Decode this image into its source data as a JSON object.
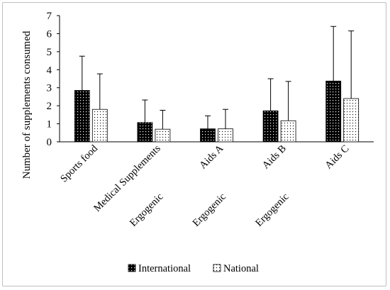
{
  "chart_data": {
    "type": "bar",
    "title": "",
    "ylabel": "Number of supplements consumed",
    "xlabel": "",
    "ylim": [
      0,
      7
    ],
    "yticks": [
      0,
      1,
      2,
      3,
      4,
      5,
      6,
      7
    ],
    "grid": false,
    "legend_position": "bottom",
    "error_bars": true,
    "categories": [
      "Sports food",
      "Medical Supplements",
      "Aids A",
      "Aids B",
      "Aids C"
    ],
    "category_prefix_labels": [
      "Ergogenic",
      "Ergogenic",
      "Ergogenic"
    ],
    "series": [
      {
        "name": "International",
        "fill": "#000000",
        "pattern": "white-dots",
        "values": [
          2.85,
          1.07,
          0.72,
          1.72,
          3.37
        ],
        "errors": [
          1.9,
          1.25,
          0.72,
          1.78,
          3.03
        ]
      },
      {
        "name": "National",
        "fill": "#ffffff",
        "pattern": "black-dots",
        "values": [
          1.8,
          0.7,
          0.72,
          1.17,
          2.4
        ],
        "errors": [
          1.97,
          1.05,
          1.08,
          2.18,
          3.75
        ]
      }
    ]
  }
}
